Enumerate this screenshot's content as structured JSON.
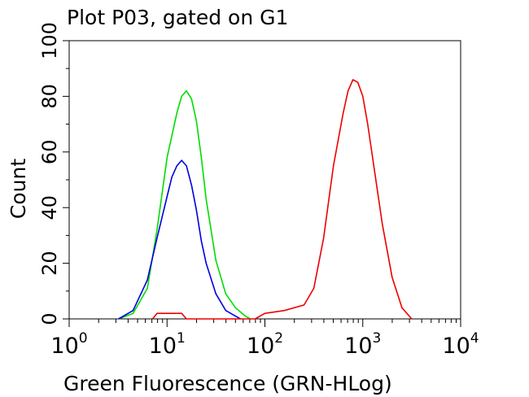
{
  "chart_data": {
    "type": "line",
    "title": "Plot P03, gated on G1",
    "xlabel": "Green Fluorescence (GRN-HLog)",
    "ylabel": "Count",
    "xscale": "log",
    "xlim": [
      1,
      10000
    ],
    "ylim": [
      0,
      100
    ],
    "x_ticks": [
      {
        "value": 1,
        "base": "10",
        "exp": "0"
      },
      {
        "value": 10,
        "base": "10",
        "exp": "1"
      },
      {
        "value": 100,
        "base": "10",
        "exp": "2"
      },
      {
        "value": 1000,
        "base": "10",
        "exp": "3"
      },
      {
        "value": 10000,
        "base": "10",
        "exp": "4"
      }
    ],
    "y_ticks": [
      "0",
      "20",
      "40",
      "60",
      "80",
      "100"
    ],
    "y_tick_values": [
      0,
      20,
      40,
      60,
      80,
      100
    ],
    "grid": false,
    "legend": "none",
    "series": [
      {
        "color": "#00dd00",
        "x": [
          3.2,
          4.5,
          6.3,
          7.9,
          10,
          12.6,
          14.1,
          15.8,
          17.8,
          20,
          22.4,
          25.1,
          31.6,
          39.8,
          50.1,
          63.1,
          70.8
        ],
        "y": [
          0,
          2,
          11,
          32,
          58,
          74,
          80,
          82,
          79,
          71,
          58,
          43,
          21,
          9,
          4,
          1,
          0
        ]
      },
      {
        "color": "#0000dd",
        "x": [
          3.2,
          4.5,
          6.3,
          7.9,
          10,
          11.2,
          12.6,
          14.1,
          15.8,
          17.8,
          20,
          22.4,
          25.1,
          31.6,
          39.8,
          50.1,
          56.2
        ],
        "y": [
          0,
          3,
          14,
          29,
          44,
          51,
          55,
          57,
          55,
          48,
          39,
          28,
          20,
          9,
          3,
          1,
          0
        ]
      },
      {
        "color": "#ee0000",
        "x": [
          7.1,
          7.9,
          10,
          12.6,
          14.1,
          15.8,
          79.4,
          100,
          158,
          251,
          316,
          398,
          501,
          631,
          708,
          794,
          891,
          1000,
          1122,
          1259,
          1585,
          1995,
          2512,
          3162
        ],
        "y": [
          0,
          2,
          2,
          2,
          2,
          0,
          0,
          2,
          3,
          5,
          11,
          29,
          55,
          74,
          82,
          86,
          85,
          80,
          70,
          58,
          34,
          15,
          4,
          0
        ]
      }
    ]
  }
}
